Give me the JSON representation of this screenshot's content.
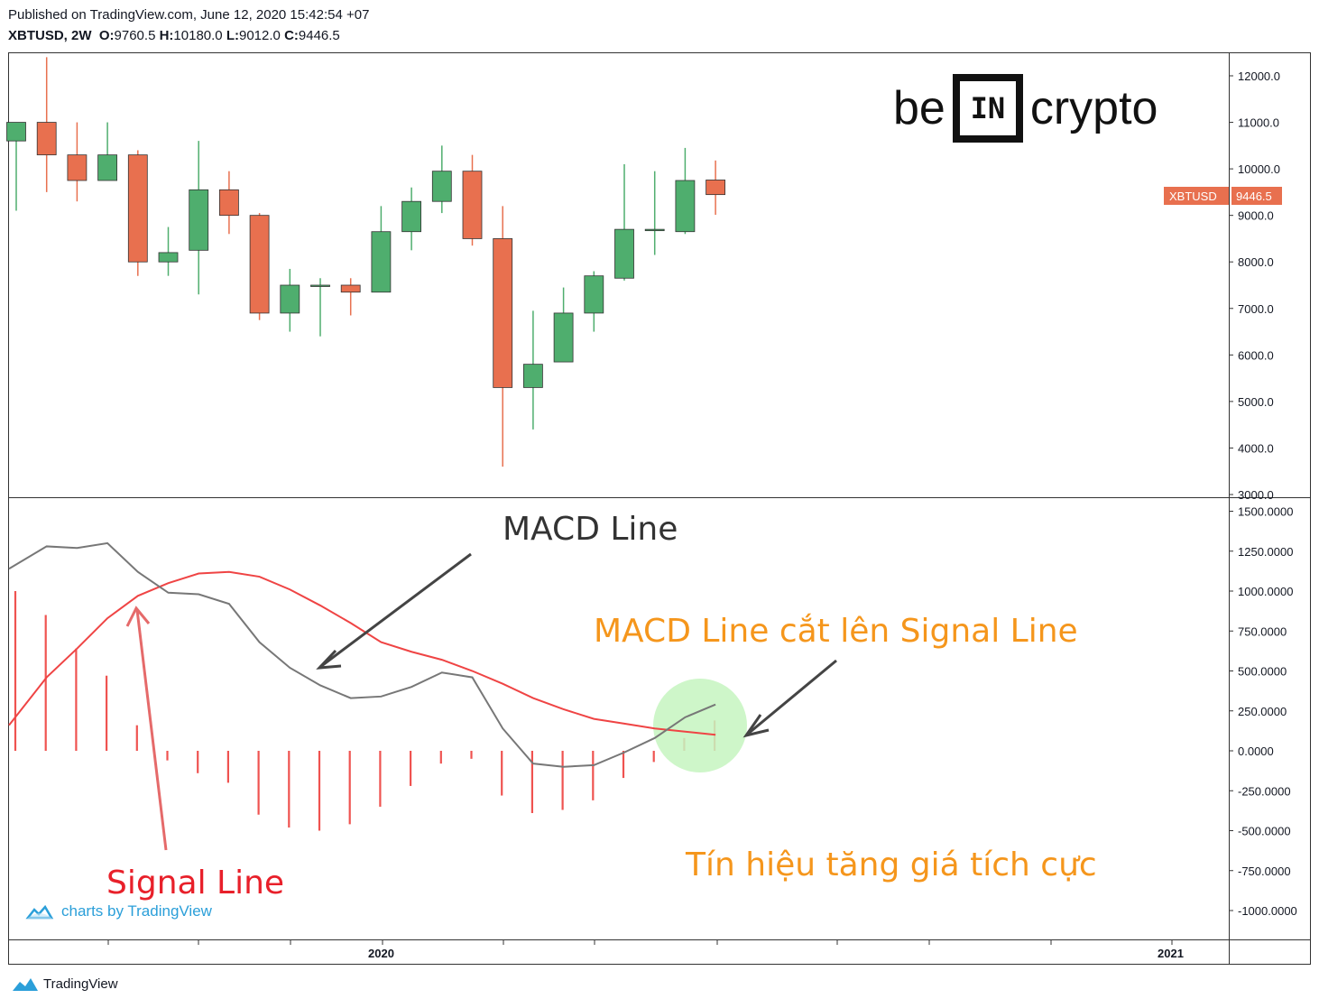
{
  "header": {
    "published": "Published on TradingView.com, June 12, 2020 15:42:54 +07",
    "symbol_tf": "XBTUSD, 2W",
    "o_label": "O:",
    "o_value": "9760.5",
    "h_label": "H:",
    "h_value": "10180.0",
    "l_label": "L:",
    "l_value": "9012.0",
    "c_label": "C:",
    "c_value": "9446.5"
  },
  "logo": {
    "left": "be",
    "mid": "IN",
    "right": "crypto"
  },
  "price_tag": {
    "symbol": "XBTUSD",
    "value": "9446.5",
    "color": "#e8704f"
  },
  "watermark": {
    "text": "charts by TradingView"
  },
  "footer": {
    "text": "TradingView"
  },
  "annotations": {
    "macd_line": "MACD Line",
    "cross": "MACD Line cắt lên Signal Line",
    "signal_line": "Signal Line",
    "bullish": "Tín hiệu tăng giá tích cực"
  },
  "colors": {
    "up": "#4fae6e",
    "down": "#e8704f",
    "macd": "#777777",
    "signal": "#ef4444",
    "hist": "#ef5350",
    "orange": "#f5961c",
    "red_text": "#e8202a"
  },
  "chart_data": [
    {
      "type": "candlestick",
      "title": "XBTUSD, 2W",
      "ylim": [
        3000,
        12500
      ],
      "y_ticks": [
        "12000.0",
        "11000.0",
        "10000.0",
        "9000.0",
        "8000.0",
        "7000.0",
        "6000.0",
        "5000.0",
        "4000.0",
        "3000.0"
      ],
      "x_ticks": [
        "2020",
        "2021"
      ],
      "candles": [
        {
          "o": 10600,
          "h": 11000,
          "l": 9100,
          "c": 11000
        },
        {
          "o": 11000,
          "h": 12400,
          "l": 9500,
          "c": 10300
        },
        {
          "o": 10300,
          "h": 11000,
          "l": 9300,
          "c": 9750
        },
        {
          "o": 9750,
          "h": 11000,
          "l": 9750,
          "c": 10300
        },
        {
          "o": 10300,
          "h": 10400,
          "l": 7700,
          "c": 8000
        },
        {
          "o": 8000,
          "h": 8750,
          "l": 7700,
          "c": 8200
        },
        {
          "o": 8250,
          "h": 10600,
          "l": 7300,
          "c": 9550
        },
        {
          "o": 9550,
          "h": 9950,
          "l": 8600,
          "c": 9000
        },
        {
          "o": 9000,
          "h": 9050,
          "l": 6750,
          "c": 6900
        },
        {
          "o": 6900,
          "h": 7850,
          "l": 6500,
          "c": 7500
        },
        {
          "o": 7480,
          "h": 7650,
          "l": 6400,
          "c": 7500
        },
        {
          "o": 7500,
          "h": 7650,
          "l": 6850,
          "c": 7350
        },
        {
          "o": 7350,
          "h": 9200,
          "l": 7350,
          "c": 8650
        },
        {
          "o": 8650,
          "h": 9600,
          "l": 8250,
          "c": 9300
        },
        {
          "o": 9300,
          "h": 10500,
          "l": 9050,
          "c": 9950
        },
        {
          "o": 9950,
          "h": 10300,
          "l": 8350,
          "c": 8500
        },
        {
          "o": 8500,
          "h": 9200,
          "l": 3600,
          "c": 5300
        },
        {
          "o": 5300,
          "h": 6950,
          "l": 4400,
          "c": 5800
        },
        {
          "o": 5850,
          "h": 7450,
          "l": 5850,
          "c": 6900
        },
        {
          "o": 6900,
          "h": 7800,
          "l": 6500,
          "c": 7700
        },
        {
          "o": 7650,
          "h": 10100,
          "l": 7600,
          "c": 8700
        },
        {
          "o": 8700,
          "h": 9950,
          "l": 8150,
          "c": 8700
        },
        {
          "o": 8650,
          "h": 10450,
          "l": 8600,
          "c": 9750
        },
        {
          "o": 9760.5,
          "h": 10180,
          "l": 9012,
          "c": 9446.5
        }
      ]
    },
    {
      "type": "line",
      "title": "MACD",
      "ylim": [
        -1250,
        1500
      ],
      "y_ticks": [
        "1500.0000",
        "1250.0000",
        "1000.0000",
        "750.0000",
        "500.0000",
        "250.0000",
        "0.0000",
        "-250.0000",
        "-500.0000",
        "-750.0000",
        "-1000.0000"
      ],
      "series": [
        {
          "key": "macd",
          "values": [
            1140,
            1280,
            1270,
            1300,
            1120,
            990,
            980,
            920,
            680,
            520,
            410,
            330,
            340,
            400,
            490,
            460,
            140,
            -80,
            -100,
            -90,
            -10,
            80,
            210,
            290
          ]
        },
        {
          "key": "signal",
          "values": [
            160,
            460,
            640,
            830,
            970,
            1050,
            1110,
            1120,
            1090,
            1010,
            910,
            800,
            680,
            620,
            570,
            500,
            420,
            330,
            260,
            200,
            170,
            140,
            120,
            100
          ]
        },
        {
          "key": "histogram",
          "values": [
            1000,
            850,
            640,
            470,
            160,
            -60,
            -140,
            -200,
            -400,
            -480,
            -500,
            -460,
            -350,
            -220,
            -80,
            -50,
            -280,
            -390,
            -370,
            -310,
            -170,
            -70,
            80,
            190
          ]
        }
      ]
    }
  ]
}
